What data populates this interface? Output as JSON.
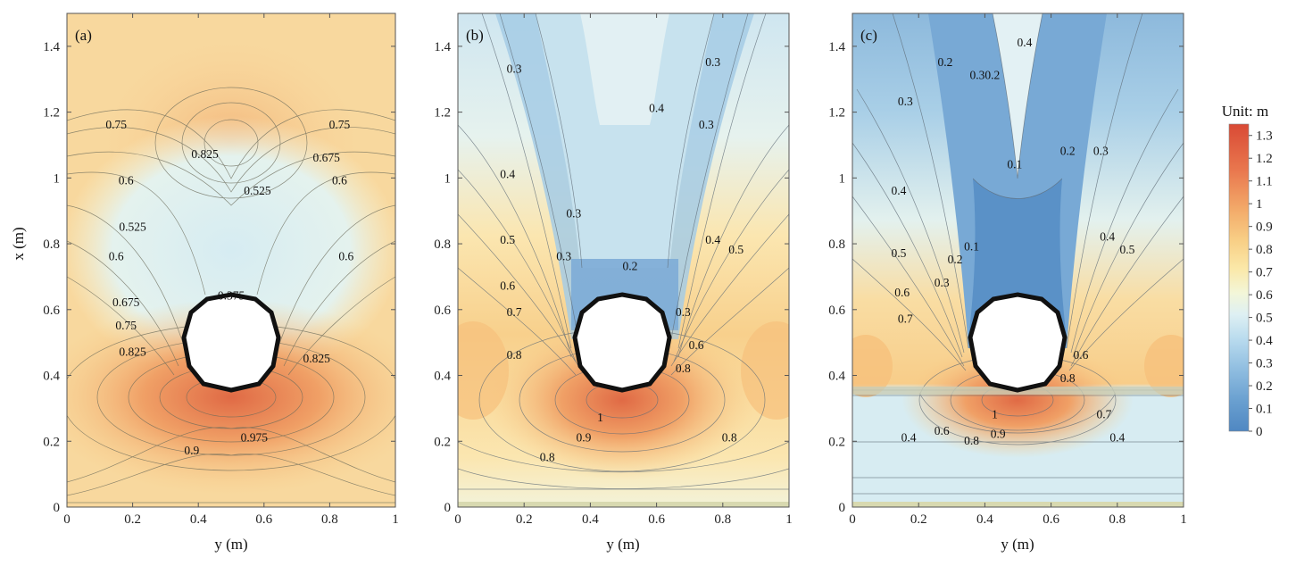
{
  "chart_data": [
    {
      "type": "contour",
      "panel": "(a)",
      "xlabel": "y (m)",
      "ylabel": "x (m)",
      "xlim": [
        0,
        1
      ],
      "ylim": [
        0,
        1.5
      ],
      "xticks": [
        "0",
        "0.2",
        "0.4",
        "0.6",
        "0.8",
        "1"
      ],
      "yticks": [
        "0",
        "0.2",
        "0.4",
        "0.6",
        "0.8",
        "1",
        "1.2",
        "1.4"
      ],
      "obstacle": {
        "center_y": 0.5,
        "center_x": 0.5,
        "diameter": 0.3
      },
      "contour_labels": [
        {
          "text": "0.75",
          "y": 0.15,
          "x": 1.15
        },
        {
          "text": "0.825",
          "y": 0.42,
          "x": 1.06
        },
        {
          "text": "0.75",
          "y": 0.83,
          "x": 1.15
        },
        {
          "text": "0.675",
          "y": 0.79,
          "x": 1.05
        },
        {
          "text": "0.6",
          "y": 0.18,
          "x": 0.98
        },
        {
          "text": "0.525",
          "y": 0.58,
          "x": 0.95
        },
        {
          "text": "0.6",
          "y": 0.83,
          "x": 0.98
        },
        {
          "text": "0.525",
          "y": 0.2,
          "x": 0.84
        },
        {
          "text": "0.6",
          "y": 0.15,
          "x": 0.75
        },
        {
          "text": "0.6",
          "y": 0.85,
          "x": 0.75
        },
        {
          "text": "0.375",
          "y": 0.5,
          "x": 0.63
        },
        {
          "text": "0.675",
          "y": 0.18,
          "x": 0.61
        },
        {
          "text": "0.75",
          "y": 0.18,
          "x": 0.54
        },
        {
          "text": "0.825",
          "y": 0.2,
          "x": 0.46
        },
        {
          "text": "0.825",
          "y": 0.76,
          "x": 0.44
        },
        {
          "text": "0.975",
          "y": 0.57,
          "x": 0.2
        },
        {
          "text": "0.9",
          "y": 0.38,
          "x": 0.16
        }
      ]
    },
    {
      "type": "contour",
      "panel": "(b)",
      "xlabel": "y (m)",
      "xlim": [
        0,
        1
      ],
      "ylim": [
        0,
        1.5
      ],
      "xticks": [
        "0",
        "0.2",
        "0.4",
        "0.6",
        "0.8",
        "1"
      ],
      "yticks": [
        "0",
        "0.2",
        "0.4",
        "0.6",
        "0.8",
        "1",
        "1.2",
        "1.4"
      ],
      "obstacle": {
        "center_y": 0.5,
        "center_x": 0.5,
        "diameter": 0.3
      },
      "contour_labels": [
        {
          "text": "0.3",
          "y": 0.17,
          "x": 1.32
        },
        {
          "text": "0.3",
          "y": 0.77,
          "x": 1.34
        },
        {
          "text": "0.4",
          "y": 0.6,
          "x": 1.2
        },
        {
          "text": "0.3",
          "y": 0.75,
          "x": 1.15
        },
        {
          "text": "0.4",
          "y": 0.15,
          "x": 1.0
        },
        {
          "text": "0.3",
          "y": 0.35,
          "x": 0.88
        },
        {
          "text": "0.5",
          "y": 0.15,
          "x": 0.8
        },
        {
          "text": "0.4",
          "y": 0.77,
          "x": 0.8
        },
        {
          "text": "0.5",
          "y": 0.84,
          "x": 0.77
        },
        {
          "text": "0.3",
          "y": 0.32,
          "x": 0.75
        },
        {
          "text": "0.2",
          "y": 0.52,
          "x": 0.72
        },
        {
          "text": "0.6",
          "y": 0.15,
          "x": 0.66
        },
        {
          "text": "0.7",
          "y": 0.17,
          "x": 0.58
        },
        {
          "text": "0.3",
          "y": 0.68,
          "x": 0.58
        },
        {
          "text": "0.8",
          "y": 0.17,
          "x": 0.45
        },
        {
          "text": "0.6",
          "y": 0.72,
          "x": 0.48
        },
        {
          "text": "0.8",
          "y": 0.68,
          "x": 0.41
        },
        {
          "text": "1",
          "y": 0.43,
          "x": 0.26
        },
        {
          "text": "0.9",
          "y": 0.38,
          "x": 0.2
        },
        {
          "text": "0.8",
          "y": 0.82,
          "x": 0.2
        },
        {
          "text": "0.8",
          "y": 0.27,
          "x": 0.14
        }
      ]
    },
    {
      "type": "contour",
      "panel": "(c)",
      "xlabel": "y (m)",
      "xlim": [
        0,
        1
      ],
      "ylim": [
        0,
        1.5
      ],
      "xticks": [
        "0",
        "0.2",
        "0.4",
        "0.6",
        "0.8",
        "1"
      ],
      "yticks": [
        "0",
        "0.2",
        "0.4",
        "0.6",
        "0.8",
        "1",
        "1.2",
        "1.4"
      ],
      "obstacle": {
        "center_y": 0.5,
        "center_x": 0.5,
        "diameter": 0.3
      },
      "contour_labels": [
        {
          "text": "0.2",
          "y": 0.28,
          "x": 1.34
        },
        {
          "text": "0.3",
          "y": 0.16,
          "x": 1.22
        },
        {
          "text": "0.30.2",
          "y": 0.4,
          "x": 1.3
        },
        {
          "text": "0.4",
          "y": 0.52,
          "x": 1.4
        },
        {
          "text": "0.2",
          "y": 0.65,
          "x": 1.07
        },
        {
          "text": "0.3",
          "y": 0.75,
          "x": 1.07
        },
        {
          "text": "0.1",
          "y": 0.49,
          "x": 1.03
        },
        {
          "text": "0.4",
          "y": 0.14,
          "x": 0.95
        },
        {
          "text": "0.1",
          "y": 0.36,
          "x": 0.78
        },
        {
          "text": "0.2",
          "y": 0.31,
          "x": 0.74
        },
        {
          "text": "0.5",
          "y": 0.14,
          "x": 0.76
        },
        {
          "text": "0.4",
          "y": 0.77,
          "x": 0.81
        },
        {
          "text": "0.5",
          "y": 0.83,
          "x": 0.77
        },
        {
          "text": "0.3",
          "y": 0.27,
          "x": 0.67
        },
        {
          "text": "0.6",
          "y": 0.15,
          "x": 0.64
        },
        {
          "text": "0.7",
          "y": 0.16,
          "x": 0.56
        },
        {
          "text": "0.8",
          "y": 0.65,
          "x": 0.38
        },
        {
          "text": "0.6",
          "y": 0.69,
          "x": 0.45
        },
        {
          "text": "1",
          "y": 0.43,
          "x": 0.27
        },
        {
          "text": "0.9",
          "y": 0.44,
          "x": 0.21
        },
        {
          "text": "0.8",
          "y": 0.36,
          "x": 0.19
        },
        {
          "text": "0.4",
          "y": 0.17,
          "x": 0.2
        },
        {
          "text": "0.4",
          "y": 0.8,
          "x": 0.2
        },
        {
          "text": "0.6",
          "y": 0.27,
          "x": 0.22
        },
        {
          "text": "0.7",
          "y": 0.76,
          "x": 0.27
        }
      ]
    }
  ],
  "colorbar": {
    "title": "Unit: m",
    "ticks": [
      "1.3",
      "1.2",
      "1.1",
      "1",
      "0.9",
      "0.8",
      "0.7",
      "0.6",
      "0.5",
      "0.4",
      "0.3",
      "0.2",
      "0.1",
      "0"
    ],
    "range": [
      0,
      1.35
    ],
    "colors": [
      "#4f87c2",
      "#6aa0d0",
      "#8fbde0",
      "#b9dbee",
      "#def0f3",
      "#f3f6d8",
      "#fbe8a8",
      "#f8cf86",
      "#f3ab6a",
      "#e9774e",
      "#d94a35"
    ]
  }
}
